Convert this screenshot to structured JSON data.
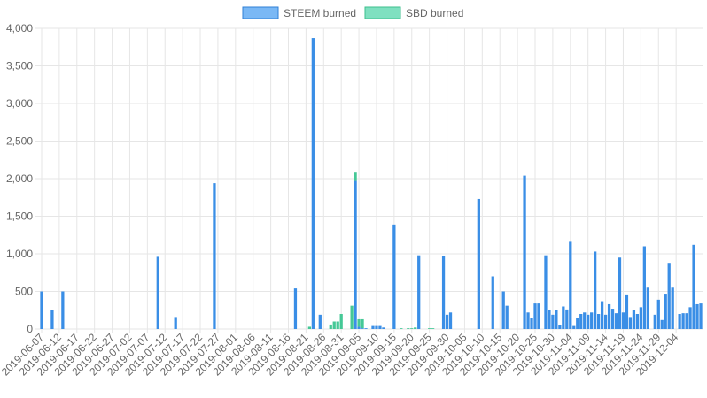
{
  "colors": {
    "steem_fill": "#7ab8f5",
    "steem_stroke": "#2f7fd6",
    "steem_bar": "#3a8ee6",
    "sbd_fill": "#7fe0c0",
    "sbd_stroke": "#3cbf8e",
    "sbd_bar": "#45c896",
    "grid": "#e6e6e6",
    "text": "#666666"
  },
  "chart_data": {
    "type": "bar",
    "stacked": true,
    "title": "",
    "xlabel": "",
    "ylabel": "",
    "ylim": [
      0,
      4000
    ],
    "y_ticks": [
      0,
      500,
      1000,
      1500,
      2000,
      2500,
      3000,
      3500,
      4000
    ],
    "y_tick_labels": [
      "0",
      "500",
      "1,000",
      "1,500",
      "2,000",
      "2,500",
      "3,000",
      "3,500",
      "4,000"
    ],
    "grid": true,
    "legend_position": "top",
    "start_date": "2019-06-07",
    "x_tick_labels": [
      "2019-06-07",
      "2019-06-12",
      "2019-06-17",
      "2019-06-22",
      "2019-06-27",
      "2019-07-02",
      "2019-07-07",
      "2019-07-12",
      "2019-07-17",
      "2019-07-22",
      "2019-07-27",
      "2019-08-01",
      "2019-08-06",
      "2019-08-11",
      "2019-08-16",
      "2019-08-21",
      "2019-08-26",
      "2019-08-31",
      "2019-09-05",
      "2019-09-10",
      "2019-09-15",
      "2019-09-20",
      "2019-09-25",
      "2019-09-30",
      "2019-10-05",
      "2019-10-10",
      "2019-10-15",
      "2019-10-20",
      "2019-10-25",
      "2019-10-30",
      "2019-11-04",
      "2019-11-09",
      "2019-11-14",
      "2019-11-19",
      "2019-11-24",
      "2019-11-29",
      "2019-12-04"
    ],
    "series": [
      {
        "name": "STEEM burned",
        "values": [
          500,
          0,
          0,
          250,
          0,
          0,
          500,
          0,
          0,
          0,
          0,
          0,
          0,
          0,
          0,
          0,
          0,
          0,
          0,
          0,
          0,
          0,
          0,
          0,
          0,
          0,
          0,
          0,
          0,
          0,
          0,
          0,
          0,
          960,
          0,
          0,
          0,
          0,
          160,
          0,
          0,
          0,
          0,
          0,
          0,
          0,
          0,
          0,
          0,
          1940,
          0,
          0,
          0,
          0,
          0,
          0,
          0,
          0,
          0,
          0,
          0,
          0,
          0,
          0,
          0,
          0,
          0,
          0,
          0,
          0,
          0,
          0,
          540,
          0,
          0,
          0,
          0,
          3870,
          0,
          190,
          0,
          0,
          0,
          0,
          0,
          0,
          0,
          0,
          0,
          1970,
          30,
          10,
          10,
          0,
          40,
          40,
          40,
          20,
          0,
          0,
          1390,
          0,
          0,
          0,
          0,
          0,
          0,
          980,
          0,
          0,
          0,
          0,
          0,
          0,
          970,
          190,
          220,
          0,
          0,
          0,
          0,
          0,
          0,
          0,
          1730,
          0,
          0,
          0,
          700,
          0,
          0,
          500,
          310,
          0,
          0,
          0,
          0,
          2040,
          220,
          150,
          340,
          340,
          0,
          980,
          250,
          190,
          250,
          50,
          300,
          260,
          1160,
          40,
          150,
          200,
          220,
          190,
          220,
          1030,
          200,
          370,
          190,
          330,
          270,
          210,
          950,
          220,
          460,
          160,
          250,
          200,
          290,
          1100,
          550,
          0,
          190,
          390,
          120,
          470,
          880,
          550,
          0,
          200,
          210,
          210,
          290,
          1120,
          330,
          340
        ],
        "color": "#3a8ee6"
      },
      {
        "name": "SBD burned",
        "values": [
          0,
          0,
          0,
          0,
          0,
          0,
          0,
          0,
          0,
          0,
          0,
          0,
          0,
          0,
          0,
          0,
          0,
          0,
          0,
          0,
          0,
          0,
          0,
          0,
          0,
          0,
          0,
          0,
          0,
          0,
          0,
          0,
          0,
          0,
          0,
          0,
          0,
          0,
          0,
          0,
          0,
          0,
          0,
          0,
          0,
          0,
          0,
          0,
          0,
          0,
          0,
          0,
          0,
          0,
          0,
          0,
          0,
          0,
          0,
          0,
          0,
          0,
          0,
          0,
          0,
          0,
          0,
          0,
          0,
          0,
          0,
          0,
          0,
          0,
          0,
          0,
          30,
          0,
          0,
          0,
          0,
          0,
          60,
          100,
          100,
          200,
          0,
          0,
          310,
          110,
          100,
          120,
          0,
          0,
          0,
          0,
          0,
          0,
          0,
          0,
          0,
          0,
          10,
          0,
          10,
          10,
          20,
          0,
          0,
          0,
          10,
          10,
          0,
          0,
          0,
          0,
          0,
          0,
          0,
          0,
          0,
          0,
          0,
          0,
          0,
          0,
          0,
          0,
          0,
          0,
          0,
          0,
          0,
          0,
          0,
          0,
          0,
          0,
          0,
          0,
          0,
          0,
          0,
          0,
          0,
          0,
          0,
          0,
          0,
          0,
          0,
          0,
          0,
          0,
          0,
          0,
          0,
          0,
          0,
          0,
          0,
          0,
          0,
          0,
          0,
          0,
          0,
          0,
          0,
          0,
          0,
          0,
          0,
          0,
          0,
          0,
          0,
          0,
          0,
          0,
          0,
          0,
          0,
          0,
          0,
          0,
          0,
          0,
          0,
          0,
          0,
          0,
          0,
          0,
          0,
          0,
          0,
          0,
          0,
          0,
          0
        ],
        "color": "#45c896"
      }
    ]
  },
  "legend": {
    "steem_label": "STEEM burned",
    "sbd_label": "SBD burned"
  }
}
